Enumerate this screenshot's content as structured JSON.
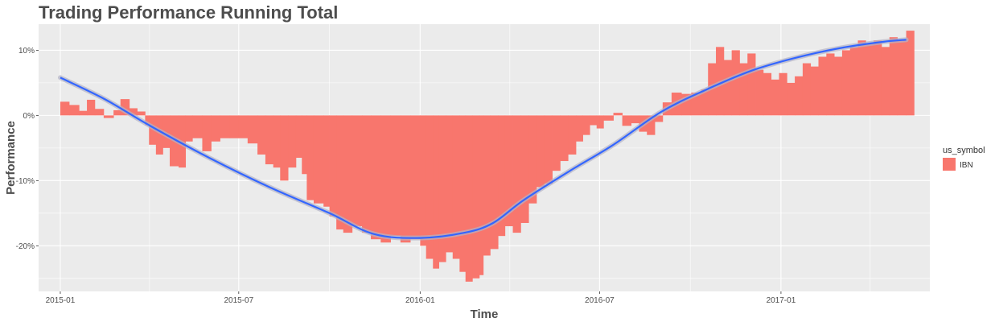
{
  "chart_data": {
    "type": "bar",
    "title": "Trading Performance Running Total",
    "xlabel": "Time",
    "ylabel": "Performance",
    "x_range": [
      "2014-12-10",
      "2017-06-01"
    ],
    "ylim": [
      -27,
      14
    ],
    "x_ticks": [
      {
        "date": "2015-01-01",
        "label": "2015-01"
      },
      {
        "date": "2015-07-01",
        "label": "2015-07"
      },
      {
        "date": "2016-01-01",
        "label": "2016-01"
      },
      {
        "date": "2016-07-01",
        "label": "2016-07"
      },
      {
        "date": "2017-01-01",
        "label": "2017-01"
      }
    ],
    "y_ticks": [
      {
        "value": 10,
        "label": "10%"
      },
      {
        "value": 0,
        "label": "0%"
      },
      {
        "value": -10,
        "label": "-10%"
      },
      {
        "value": -20,
        "label": "-20%"
      }
    ],
    "grid": true,
    "legend": {
      "title": "us_symbol",
      "position": "right",
      "entries": [
        "IBN"
      ]
    },
    "colors": {
      "panel": "#ebebeb",
      "grid": "#ffffff",
      "bar": "#f8766d",
      "smooth": "#3366ff",
      "ribbon": "#b3b3c8"
    },
    "series": [
      {
        "name": "IBN",
        "kind": "bar",
        "points": [
          [
            "2015-01-01",
            2.1
          ],
          [
            "2015-01-10",
            1.6
          ],
          [
            "2015-01-20",
            0.7
          ],
          [
            "2015-01-28",
            2.4
          ],
          [
            "2015-02-05",
            1.0
          ],
          [
            "2015-02-14",
            -0.4
          ],
          [
            "2015-02-24",
            0.8
          ],
          [
            "2015-03-03",
            2.5
          ],
          [
            "2015-03-12",
            1.1
          ],
          [
            "2015-03-20",
            0.6
          ],
          [
            "2015-03-28",
            -1.5
          ],
          [
            "2015-04-01",
            -4.5
          ],
          [
            "2015-04-08",
            -6.0
          ],
          [
            "2015-04-15",
            -5.0
          ],
          [
            "2015-04-22",
            -7.8
          ],
          [
            "2015-05-01",
            -8.0
          ],
          [
            "2015-05-08",
            -4.0
          ],
          [
            "2015-05-15",
            -3.5
          ],
          [
            "2015-05-25",
            -5.5
          ],
          [
            "2015-06-03",
            -4.0
          ],
          [
            "2015-06-12",
            -3.5
          ],
          [
            "2015-06-22",
            -3.5
          ],
          [
            "2015-07-01",
            -3.5
          ],
          [
            "2015-07-10",
            -4.3
          ],
          [
            "2015-07-20",
            -6.0
          ],
          [
            "2015-07-28",
            -7.5
          ],
          [
            "2015-08-05",
            -8.0
          ],
          [
            "2015-08-12",
            -10.0
          ],
          [
            "2015-08-20",
            -8.0
          ],
          [
            "2015-08-28",
            -6.5
          ],
          [
            "2015-09-03",
            -9.0
          ],
          [
            "2015-09-08",
            -13.0
          ],
          [
            "2015-09-15",
            -13.5
          ],
          [
            "2015-09-25",
            -14.0
          ],
          [
            "2015-10-01",
            -15.5
          ],
          [
            "2015-10-08",
            -17.5
          ],
          [
            "2015-10-15",
            -18.0
          ],
          [
            "2015-10-24",
            -17.0
          ],
          [
            "2015-11-03",
            -18.0
          ],
          [
            "2015-11-12",
            -19.0
          ],
          [
            "2015-11-22",
            -19.5
          ],
          [
            "2015-12-02",
            -18.5
          ],
          [
            "2015-12-12",
            -19.5
          ],
          [
            "2015-12-22",
            -19.0
          ],
          [
            "2016-01-01",
            -20.0
          ],
          [
            "2016-01-07",
            -22.0
          ],
          [
            "2016-01-14",
            -23.5
          ],
          [
            "2016-01-20",
            -22.5
          ],
          [
            "2016-01-27",
            -21.0
          ],
          [
            "2016-02-03",
            -22.0
          ],
          [
            "2016-02-10",
            -24.0
          ],
          [
            "2016-02-16",
            -25.5
          ],
          [
            "2016-02-23",
            -25.0
          ],
          [
            "2016-03-01",
            -24.5
          ],
          [
            "2016-03-05",
            -21.5
          ],
          [
            "2016-03-12",
            -20.5
          ],
          [
            "2016-03-20",
            -18.5
          ],
          [
            "2016-03-27",
            -17.0
          ],
          [
            "2016-04-04",
            -18.0
          ],
          [
            "2016-04-12",
            -16.5
          ],
          [
            "2016-04-20",
            -13.5
          ],
          [
            "2016-04-28",
            -11.0
          ],
          [
            "2016-05-06",
            -10.5
          ],
          [
            "2016-05-14",
            -8.5
          ],
          [
            "2016-05-22",
            -7.0
          ],
          [
            "2016-05-30",
            -6.0
          ],
          [
            "2016-06-07",
            -4.0
          ],
          [
            "2016-06-14",
            -3.0
          ],
          [
            "2016-06-21",
            -1.5
          ],
          [
            "2016-06-28",
            -2.0
          ],
          [
            "2016-07-05",
            -0.8
          ],
          [
            "2016-07-15",
            0.4
          ],
          [
            "2016-07-24",
            -1.6
          ],
          [
            "2016-08-02",
            -1.2
          ],
          [
            "2016-08-10",
            -2.5
          ],
          [
            "2016-08-18",
            -3.0
          ],
          [
            "2016-08-26",
            -1.0
          ],
          [
            "2016-09-03",
            2.0
          ],
          [
            "2016-09-12",
            3.5
          ],
          [
            "2016-09-22",
            3.3
          ],
          [
            "2016-10-02",
            3.5
          ],
          [
            "2016-10-12",
            4.0
          ],
          [
            "2016-10-19",
            8.0
          ],
          [
            "2016-10-27",
            10.5
          ],
          [
            "2016-11-04",
            8.5
          ],
          [
            "2016-11-12",
            10.0
          ],
          [
            "2016-11-20",
            8.0
          ],
          [
            "2016-11-28",
            9.5
          ],
          [
            "2016-12-06",
            7.0
          ],
          [
            "2016-12-14",
            6.5
          ],
          [
            "2016-12-22",
            5.5
          ],
          [
            "2016-12-30",
            6.5
          ],
          [
            "2017-01-07",
            5.0
          ],
          [
            "2017-01-15",
            6.0
          ],
          [
            "2017-01-23",
            8.0
          ],
          [
            "2017-01-31",
            7.5
          ],
          [
            "2017-02-08",
            9.0
          ],
          [
            "2017-02-16",
            9.5
          ],
          [
            "2017-02-24",
            9.0
          ],
          [
            "2017-03-04",
            10.0
          ],
          [
            "2017-03-12",
            10.5
          ],
          [
            "2017-03-20",
            11.5
          ],
          [
            "2017-03-28",
            11.0
          ],
          [
            "2017-04-05",
            11.5
          ],
          [
            "2017-04-13",
            10.5
          ],
          [
            "2017-04-21",
            12.0
          ],
          [
            "2017-04-29",
            11.5
          ],
          [
            "2017-05-08",
            13.0
          ]
        ]
      },
      {
        "kind": "smooth",
        "points": [
          [
            "2015-01-01",
            5.8
          ],
          [
            "2015-02-15",
            2.5
          ],
          [
            "2015-04-01",
            -1.5
          ],
          [
            "2015-06-01",
            -6.5
          ],
          [
            "2015-08-01",
            -11.0
          ],
          [
            "2015-10-01",
            -15.0
          ],
          [
            "2015-11-15",
            -18.2
          ],
          [
            "2016-01-01",
            -18.8
          ],
          [
            "2016-02-15",
            -18.0
          ],
          [
            "2016-03-15",
            -16.5
          ],
          [
            "2016-04-15",
            -13.0
          ],
          [
            "2016-06-01",
            -8.5
          ],
          [
            "2016-07-15",
            -4.5
          ],
          [
            "2016-09-01",
            0.5
          ],
          [
            "2016-10-15",
            3.8
          ],
          [
            "2016-12-01",
            6.8
          ],
          [
            "2017-01-15",
            8.8
          ],
          [
            "2017-03-01",
            10.3
          ],
          [
            "2017-04-15",
            11.3
          ],
          [
            "2017-05-08",
            11.6
          ]
        ]
      }
    ]
  }
}
